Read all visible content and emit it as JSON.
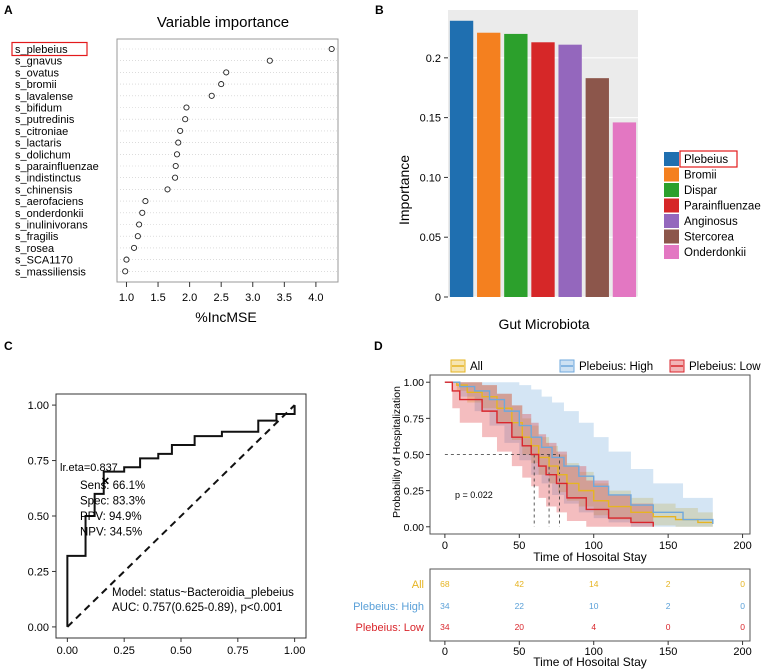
{
  "panels": {
    "A": "A",
    "B": "B",
    "C": "C",
    "D": "D"
  },
  "chart_data": [
    {
      "id": "A",
      "type": "scatter",
      "title": "Variable importance",
      "xlabel": "%IncMSE",
      "ylabel": "",
      "xlim": [
        0.85,
        4.35
      ],
      "xticks": [
        1.0,
        1.5,
        2.0,
        2.5,
        3.0,
        3.5,
        4.0
      ],
      "xtick_labels": [
        "1.0",
        "1.5",
        "2.0",
        "2.5",
        "3.0",
        "3.5",
        "4.0"
      ],
      "highlight": "s_plebeius",
      "points": [
        {
          "label": "s_plebeius",
          "value": 4.25
        },
        {
          "label": "s_gnavus",
          "value": 3.27
        },
        {
          "label": "s_ovatus",
          "value": 2.58
        },
        {
          "label": "s_bromii",
          "value": 2.5
        },
        {
          "label": "s_lavalense",
          "value": 2.35
        },
        {
          "label": "s_bifidum",
          "value": 1.95
        },
        {
          "label": "s_putredinis",
          "value": 1.93
        },
        {
          "label": "s_citroniae",
          "value": 1.85
        },
        {
          "label": "s_lactaris",
          "value": 1.82
        },
        {
          "label": "s_dolichum",
          "value": 1.8
        },
        {
          "label": "s_parainfluenzae",
          "value": 1.78
        },
        {
          "label": "s_indistinctus",
          "value": 1.77
        },
        {
          "label": "s_chinensis",
          "value": 1.65
        },
        {
          "label": "s_aerofaciens",
          "value": 1.3
        },
        {
          "label": "s_onderdonkii",
          "value": 1.25
        },
        {
          "label": "s_inulinivorans",
          "value": 1.2
        },
        {
          "label": "s_fragilis",
          "value": 1.18
        },
        {
          "label": "s_rosea",
          "value": 1.12
        },
        {
          "label": "s_SCA1170",
          "value": 1.0
        },
        {
          "label": "s_massiliensis",
          "value": 0.98
        }
      ]
    },
    {
      "id": "B",
      "type": "bar",
      "xlabel": "Gut Microbiota",
      "ylabel": "Importance",
      "ylim": [
        0,
        0.24
      ],
      "yticks": [
        0,
        0.05,
        0.1,
        0.15,
        0.2
      ],
      "ytick_labels": [
        "0",
        "0.05",
        "0.10",
        "0.15",
        "0.2"
      ],
      "highlight": "Plebeius",
      "categories": [
        "Plebeius",
        "Bromii",
        "Dispar",
        "Parainfluenzae",
        "Anginosus",
        "Stercorea",
        "Onderdonkii"
      ],
      "values": [
        0.231,
        0.221,
        0.22,
        0.213,
        0.211,
        0.183,
        0.146
      ],
      "colors": [
        "#1f6fb0",
        "#f4801f",
        "#2ca02c",
        "#d62728",
        "#9467bd",
        "#8c564b",
        "#e377c2"
      ]
    },
    {
      "id": "C",
      "type": "line",
      "xlim": [
        -0.05,
        1.05
      ],
      "ylim": [
        -0.05,
        1.05
      ],
      "xticks": [
        0,
        0.25,
        0.5,
        0.75,
        1
      ],
      "xtick_labels": [
        "0.00",
        "0.25",
        "0.50",
        "0.75",
        "1.00"
      ],
      "yticks": [
        0,
        0.25,
        0.5,
        0.75,
        1
      ],
      "ytick_labels": [
        "0.00",
        "0.25",
        "0.50",
        "0.75",
        "1.00"
      ],
      "roc": [
        [
          0,
          0
        ],
        [
          0,
          0.32
        ],
        [
          0.08,
          0.32
        ],
        [
          0.08,
          0.5
        ],
        [
          0.12,
          0.5
        ],
        [
          0.12,
          0.6
        ],
        [
          0.16,
          0.6
        ],
        [
          0.16,
          0.7
        ],
        [
          0.25,
          0.7
        ],
        [
          0.25,
          0.72
        ],
        [
          0.32,
          0.72
        ],
        [
          0.32,
          0.76
        ],
        [
          0.4,
          0.76
        ],
        [
          0.4,
          0.78
        ],
        [
          0.46,
          0.78
        ],
        [
          0.46,
          0.82
        ],
        [
          0.56,
          0.82
        ],
        [
          0.56,
          0.86
        ],
        [
          0.68,
          0.86
        ],
        [
          0.68,
          0.88
        ],
        [
          0.84,
          0.88
        ],
        [
          0.84,
          0.93
        ],
        [
          0.92,
          0.93
        ],
        [
          0.92,
          0.96
        ],
        [
          1,
          0.96
        ],
        [
          1,
          1
        ]
      ],
      "cut_point": [
        0.167,
        0.661
      ],
      "cut_label": "lr.eta=0.837",
      "metrics": [
        "Sens: 66.1%",
        "Spec: 83.3%",
        "PPV: 94.9%",
        "NPV: 34.5%"
      ],
      "model_text": "Model: status~Bacteroidia_plebeius",
      "auc_text": "AUC: 0.757(0.625-0.89), p<0.001"
    },
    {
      "id": "D",
      "type": "line",
      "ylabel": "Probability of Hospitalization",
      "xlabel": "Time of Hosoital Stay",
      "xlim": [
        -10,
        205
      ],
      "ylim": [
        -0.05,
        1.05
      ],
      "xticks": [
        0,
        50,
        100,
        150,
        200
      ],
      "xtick_labels": [
        "0",
        "50",
        "100",
        "150",
        "200"
      ],
      "yticks": [
        0,
        0.25,
        0.5,
        0.75,
        1
      ],
      "ytick_labels": [
        "0.00",
        "0.25",
        "0.50",
        "0.75",
        "1.00"
      ],
      "pvalue": "p = 0.022",
      "median_times": [
        60,
        70,
        77
      ],
      "legend": [
        {
          "name": "All",
          "color": "#e6b422"
        },
        {
          "name": "Plebeius: High",
          "color": "#6fa8dc"
        },
        {
          "name": "Plebeius: Low",
          "color": "#d9262c"
        }
      ],
      "series": [
        {
          "name": "All",
          "color": "#e6b422",
          "points": [
            [
              0,
              1
            ],
            [
              8,
              0.98
            ],
            [
              15,
              0.93
            ],
            [
              25,
              0.9
            ],
            [
              35,
              0.82
            ],
            [
              45,
              0.72
            ],
            [
              52,
              0.62
            ],
            [
              58,
              0.56
            ],
            [
              63,
              0.48
            ],
            [
              70,
              0.42
            ],
            [
              76,
              0.36
            ],
            [
              82,
              0.3
            ],
            [
              90,
              0.25
            ],
            [
              100,
              0.18
            ],
            [
              110,
              0.14
            ],
            [
              125,
              0.1
            ],
            [
              140,
              0.07
            ],
            [
              155,
              0.05
            ],
            [
              170,
              0.03
            ],
            [
              180,
              0.02
            ]
          ],
          "band_upper": [
            1,
            1,
            1,
            0.98,
            0.92,
            0.84,
            0.75,
            0.7,
            0.62,
            0.56,
            0.5,
            0.44,
            0.38,
            0.3,
            0.25,
            0.2,
            0.16,
            0.13,
            0.1,
            0.08
          ],
          "band_lower": [
            1,
            0.94,
            0.86,
            0.82,
            0.72,
            0.6,
            0.5,
            0.44,
            0.36,
            0.3,
            0.24,
            0.18,
            0.14,
            0.08,
            0.05,
            0.03,
            0.01,
            0,
            0,
            0
          ]
        },
        {
          "name": "Plebeius: High",
          "color": "#6fa8dc",
          "points": [
            [
              0,
              1
            ],
            [
              10,
              0.97
            ],
            [
              20,
              0.94
            ],
            [
              30,
              0.88
            ],
            [
              40,
              0.8
            ],
            [
              50,
              0.7
            ],
            [
              58,
              0.62
            ],
            [
              65,
              0.55
            ],
            [
              72,
              0.48
            ],
            [
              80,
              0.42
            ],
            [
              90,
              0.35
            ],
            [
              100,
              0.28
            ],
            [
              110,
              0.22
            ],
            [
              125,
              0.15
            ],
            [
              140,
              0.1
            ],
            [
              160,
              0.05
            ],
            [
              180,
              0.02
            ]
          ],
          "band_upper": [
            1,
            1,
            1,
            1,
            1,
            0.98,
            0.95,
            0.9,
            0.86,
            0.8,
            0.72,
            0.62,
            0.52,
            0.4,
            0.3,
            0.2,
            0.12
          ],
          "band_lower": [
            1,
            0.9,
            0.8,
            0.7,
            0.58,
            0.46,
            0.36,
            0.3,
            0.22,
            0.16,
            0.1,
            0.06,
            0.03,
            0,
            0,
            0,
            0
          ]
        },
        {
          "name": "Plebeius: Low",
          "color": "#d9262c",
          "points": [
            [
              0,
              1
            ],
            [
              5,
              0.94
            ],
            [
              10,
              0.88
            ],
            [
              15,
              0.88
            ],
            [
              25,
              0.8
            ],
            [
              35,
              0.72
            ],
            [
              45,
              0.62
            ],
            [
              52,
              0.56
            ],
            [
              58,
              0.5
            ],
            [
              63,
              0.42
            ],
            [
              68,
              0.36
            ],
            [
              75,
              0.3
            ],
            [
              82,
              0.2
            ],
            [
              95,
              0.12
            ],
            [
              110,
              0.06
            ],
            [
              125,
              0.03
            ],
            [
              140,
              0
            ]
          ],
          "band_upper": [
            1,
            1,
            1,
            1,
            0.98,
            0.92,
            0.84,
            0.78,
            0.72,
            0.64,
            0.58,
            0.52,
            0.42,
            0.32,
            0.22,
            0.16,
            0.12
          ],
          "band_lower": [
            1,
            0.82,
            0.72,
            0.72,
            0.62,
            0.52,
            0.42,
            0.34,
            0.28,
            0.2,
            0.14,
            0.1,
            0.04,
            0,
            0,
            0,
            0
          ]
        }
      ],
      "risk_table": {
        "xlabel": "Time of Hosoital Stay",
        "times": [
          0,
          50,
          100,
          150,
          200
        ],
        "rows": [
          {
            "name": "All",
            "color": "#e6b422",
            "values": [
              "68",
              "42",
              "14",
              "2",
              "0"
            ]
          },
          {
            "name": "Plebeius: High",
            "color": "#5aa0d8",
            "values": [
              "34",
              "22",
              "10",
              "2",
              "0"
            ]
          },
          {
            "name": "Plebeius: Low",
            "color": "#d9262c",
            "values": [
              "34",
              "20",
              "4",
              "0",
              "0"
            ]
          }
        ]
      }
    }
  ]
}
